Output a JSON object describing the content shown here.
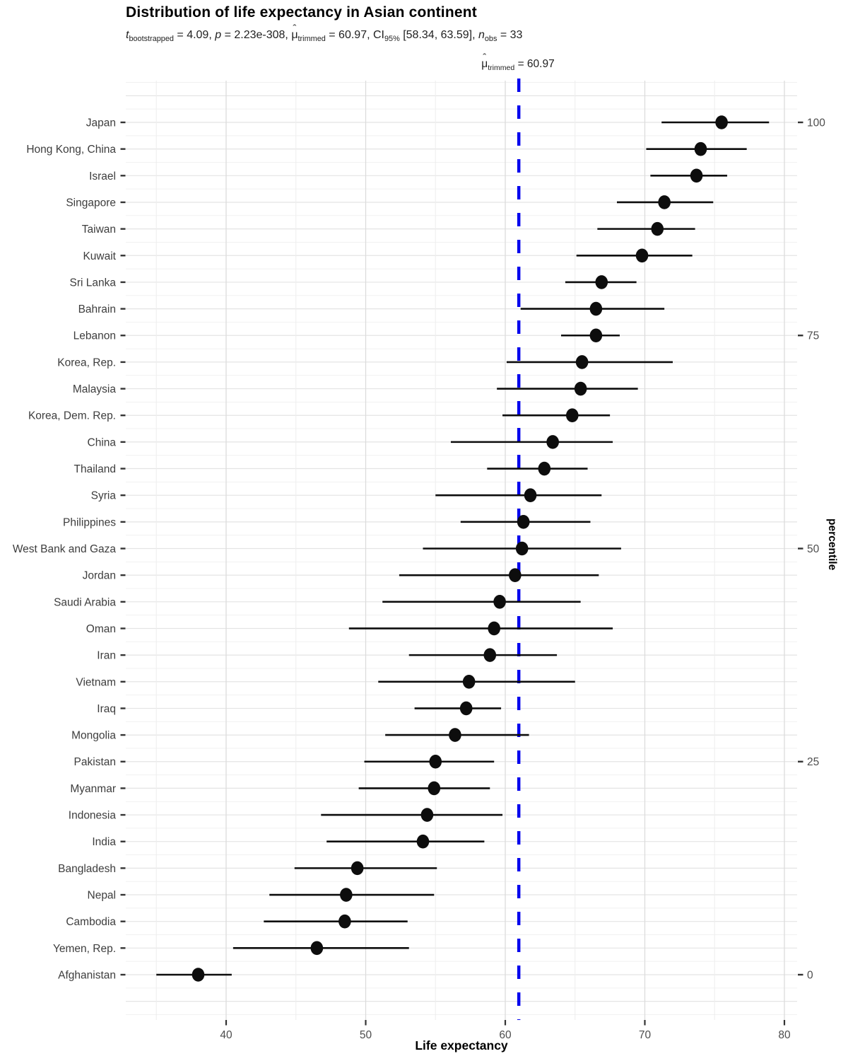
{
  "chart_data": {
    "type": "scatter",
    "variant": "horizontal-dot-plot-with-ci",
    "title": "Distribution of life expectancy in Asian continent",
    "subtitle_segments": [
      {
        "text": "t",
        "style": "italic"
      },
      {
        "text": "bootstrapped",
        "style": "sub"
      },
      {
        "text": " = 4.09, ",
        "style": ""
      },
      {
        "text": "p",
        "style": "italic"
      },
      {
        "text": " = 2.23e-308, ",
        "style": ""
      },
      {
        "text": "μ",
        "style": "hat"
      },
      {
        "text": "trimmed",
        "style": "sub"
      },
      {
        "text": " = 60.97, CI",
        "style": ""
      },
      {
        "text": "95%",
        "style": "sub"
      },
      {
        "text": " [58.34, 63.59], ",
        "style": ""
      },
      {
        "text": "n",
        "style": "italic"
      },
      {
        "text": "obs",
        "style": "sub"
      },
      {
        "text": " = 33",
        "style": ""
      }
    ],
    "annotation_segments": [
      {
        "text": "μ",
        "style": "hat"
      },
      {
        "text": "trimmed",
        "style": "sub"
      },
      {
        "text": " = 60.97",
        "style": ""
      }
    ],
    "xlabel": "Life expectancy",
    "right_axis_label": "percentile",
    "xlim": [
      32.8,
      81.0
    ],
    "x_major_ticks": [
      40,
      50,
      60,
      70,
      80
    ],
    "x_minor_gridlines": [
      35,
      45,
      55,
      65,
      75
    ],
    "right_axis_ticks": [
      {
        "label": "100",
        "row_index": 0
      },
      {
        "label": "75",
        "row_index": 8
      },
      {
        "label": "50",
        "row_index": 16
      },
      {
        "label": "25",
        "row_index": 24
      },
      {
        "label": "0",
        "row_index": 32
      }
    ],
    "test_line": {
      "value": 60.97,
      "color": "#0505EE"
    },
    "colors": {
      "point": "#0d0d0d",
      "ci_line": "#0d0d0d",
      "grid_major_v": "#dcdcdc",
      "grid_minor_v": "#eeeeee",
      "grid_major_h": "#e4e4e4",
      "grid_minor_h": "#f1f1f1",
      "tick": "#333333",
      "country_label": "#3d3d3d",
      "numeric_label": "#4d4d4d"
    },
    "points": [
      {
        "country": "Japan",
        "value": 75.5,
        "ci_low": 71.2,
        "ci_high": 78.9
      },
      {
        "country": "Hong Kong, China",
        "value": 74.0,
        "ci_low": 70.1,
        "ci_high": 77.3
      },
      {
        "country": "Israel",
        "value": 73.7,
        "ci_low": 70.4,
        "ci_high": 75.9
      },
      {
        "country": "Singapore",
        "value": 71.4,
        "ci_low": 68.0,
        "ci_high": 74.9
      },
      {
        "country": "Taiwan",
        "value": 70.9,
        "ci_low": 66.6,
        "ci_high": 73.6
      },
      {
        "country": "Kuwait",
        "value": 69.8,
        "ci_low": 65.1,
        "ci_high": 73.4
      },
      {
        "country": "Sri Lanka",
        "value": 66.9,
        "ci_low": 64.3,
        "ci_high": 69.4
      },
      {
        "country": "Bahrain",
        "value": 66.5,
        "ci_low": 61.1,
        "ci_high": 71.4
      },
      {
        "country": "Lebanon",
        "value": 66.5,
        "ci_low": 64.0,
        "ci_high": 68.2
      },
      {
        "country": "Korea, Rep.",
        "value": 65.5,
        "ci_low": 60.1,
        "ci_high": 72.0
      },
      {
        "country": "Malaysia",
        "value": 65.4,
        "ci_low": 59.4,
        "ci_high": 69.5
      },
      {
        "country": "Korea, Dem. Rep.",
        "value": 64.8,
        "ci_low": 59.8,
        "ci_high": 67.5
      },
      {
        "country": "China",
        "value": 63.4,
        "ci_low": 56.1,
        "ci_high": 67.7
      },
      {
        "country": "Thailand",
        "value": 62.8,
        "ci_low": 58.7,
        "ci_high": 65.9
      },
      {
        "country": "Syria",
        "value": 61.8,
        "ci_low": 55.0,
        "ci_high": 66.9
      },
      {
        "country": "Philippines",
        "value": 61.3,
        "ci_low": 56.8,
        "ci_high": 66.1
      },
      {
        "country": "West Bank and Gaza",
        "value": 61.2,
        "ci_low": 54.1,
        "ci_high": 68.3
      },
      {
        "country": "Jordan",
        "value": 60.7,
        "ci_low": 52.4,
        "ci_high": 66.7
      },
      {
        "country": "Saudi Arabia",
        "value": 59.6,
        "ci_low": 51.2,
        "ci_high": 65.4
      },
      {
        "country": "Oman",
        "value": 59.2,
        "ci_low": 48.8,
        "ci_high": 67.7
      },
      {
        "country": "Iran",
        "value": 58.9,
        "ci_low": 53.1,
        "ci_high": 63.7
      },
      {
        "country": "Vietnam",
        "value": 57.4,
        "ci_low": 50.9,
        "ci_high": 65.0
      },
      {
        "country": "Iraq",
        "value": 57.2,
        "ci_low": 53.5,
        "ci_high": 59.7
      },
      {
        "country": "Mongolia",
        "value": 56.4,
        "ci_low": 51.4,
        "ci_high": 61.7
      },
      {
        "country": "Pakistan",
        "value": 55.0,
        "ci_low": 49.9,
        "ci_high": 59.2
      },
      {
        "country": "Myanmar",
        "value": 54.9,
        "ci_low": 49.5,
        "ci_high": 58.9
      },
      {
        "country": "Indonesia",
        "value": 54.4,
        "ci_low": 46.8,
        "ci_high": 59.8
      },
      {
        "country": "India",
        "value": 54.1,
        "ci_low": 47.2,
        "ci_high": 58.5
      },
      {
        "country": "Bangladesh",
        "value": 49.4,
        "ci_low": 44.9,
        "ci_high": 55.1
      },
      {
        "country": "Nepal",
        "value": 48.6,
        "ci_low": 43.1,
        "ci_high": 54.9
      },
      {
        "country": "Cambodia",
        "value": 48.5,
        "ci_low": 42.7,
        "ci_high": 53.0
      },
      {
        "country": "Yemen, Rep.",
        "value": 46.5,
        "ci_low": 40.5,
        "ci_high": 53.1
      },
      {
        "country": "Afghanistan",
        "value": 38.0,
        "ci_low": 35.0,
        "ci_high": 40.4
      }
    ]
  }
}
